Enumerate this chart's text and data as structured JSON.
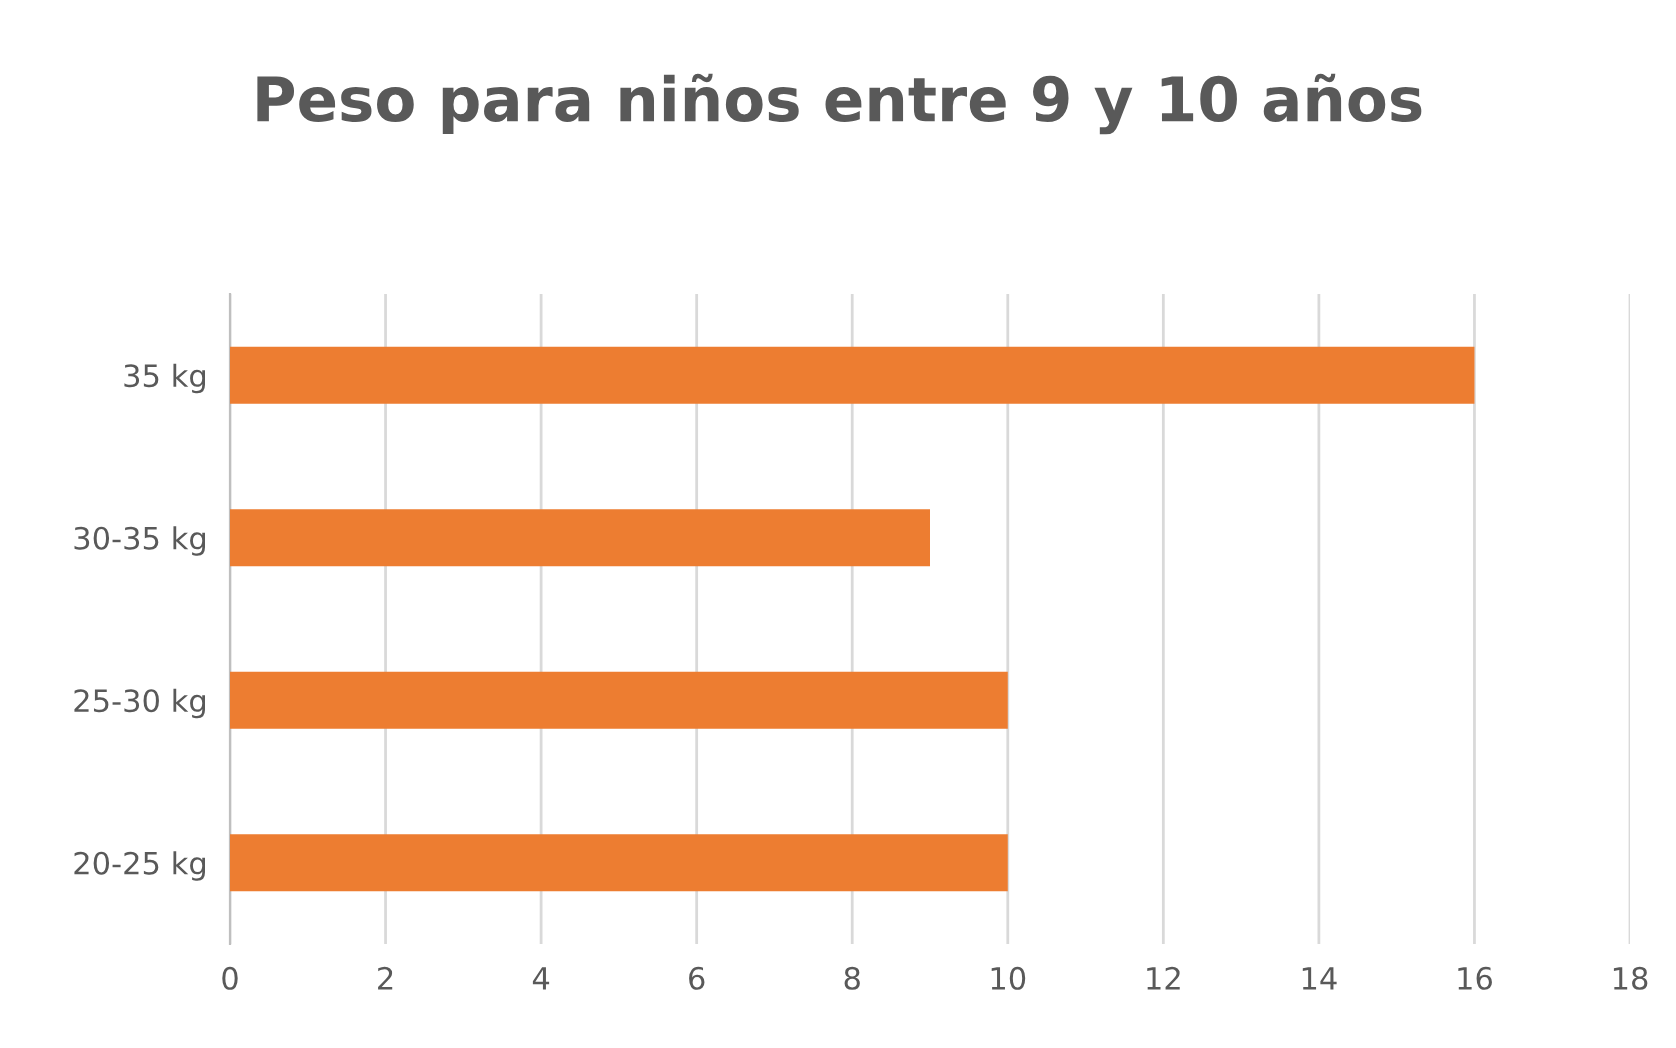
{
  "chart_data": {
    "type": "bar",
    "orientation": "horizontal",
    "title": "Peso para niños entre 9 y 10 años",
    "categories": [
      "35 kg",
      "30-35 kg",
      "25-30 kg",
      "20-25 kg"
    ],
    "values": [
      16,
      9,
      10,
      10
    ],
    "color": "#ed7d31",
    "xlim": [
      0,
      18
    ],
    "xticks": [
      0,
      2,
      4,
      6,
      8,
      10,
      12,
      14,
      16,
      18
    ],
    "grid": "x"
  }
}
